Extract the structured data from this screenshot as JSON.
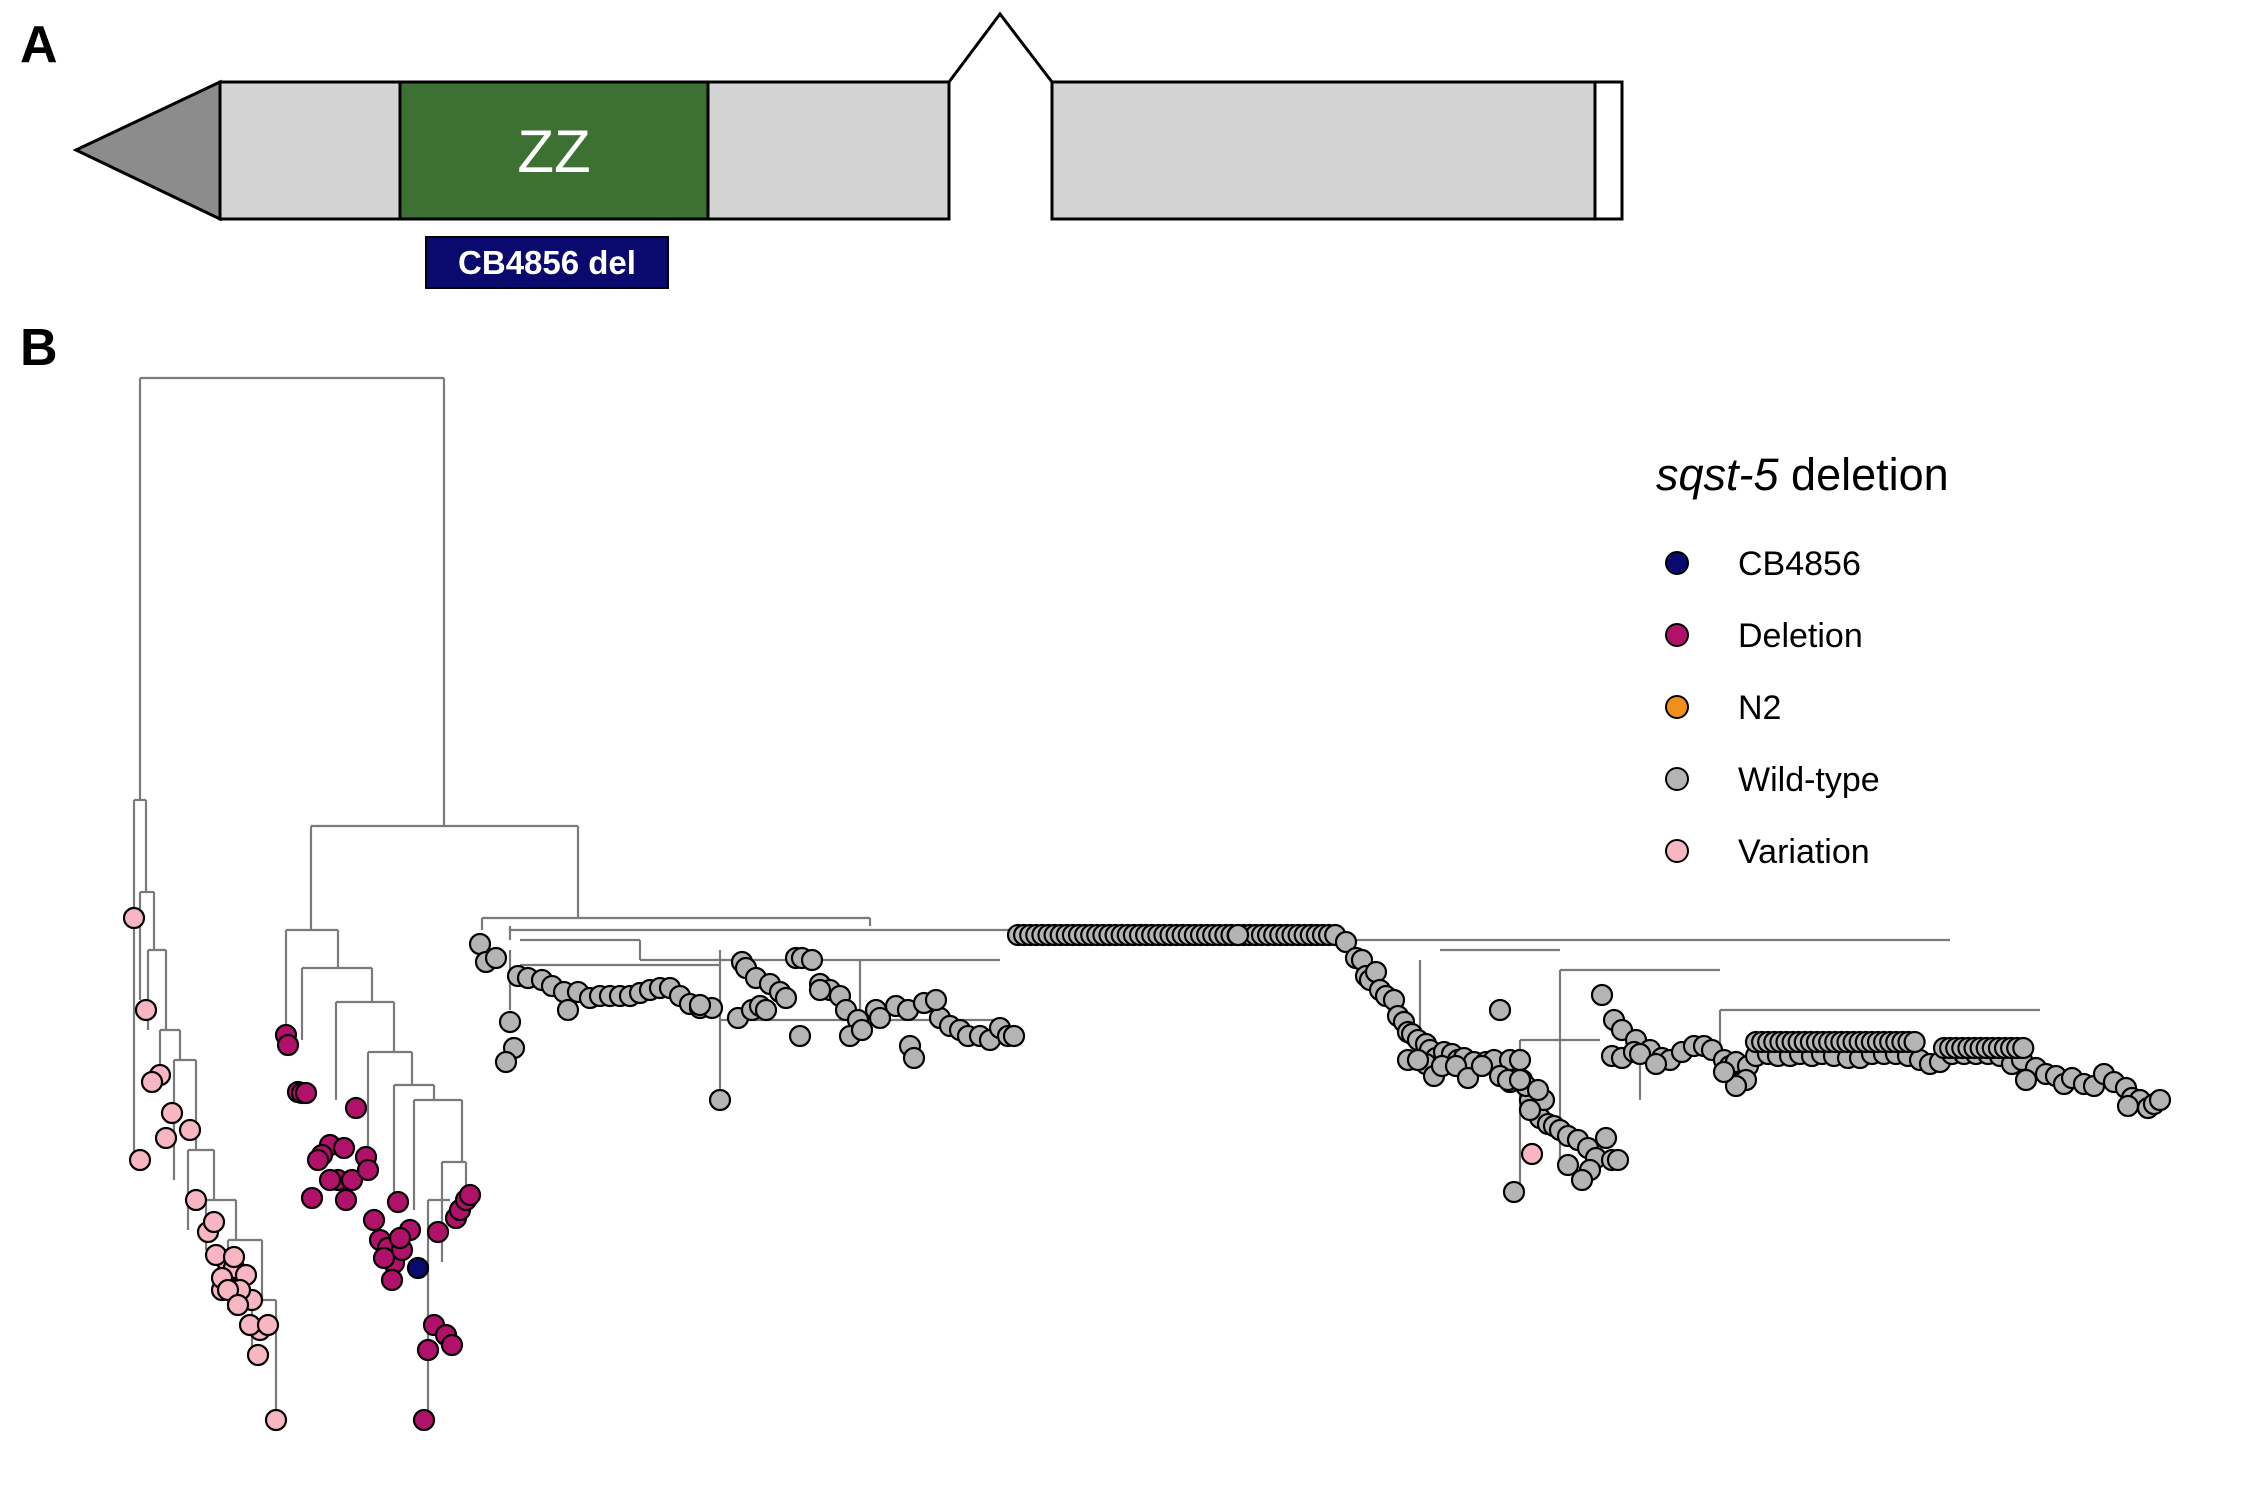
{
  "panel_a": {
    "label": "A",
    "domain_label": "ZZ",
    "deletion_label": "CB4856 del",
    "colors": {
      "utr": "#8c8c8c",
      "exon": "#d3d3d3",
      "zz_domain": "#3d7033",
      "deletion_box": "#0a0a6e"
    }
  },
  "panel_b": {
    "label": "B",
    "legend": {
      "title_italic": "sqst-5",
      "title_rest": " deletion",
      "items": [
        {
          "label": "CB4856",
          "color": "#0a0a6e"
        },
        {
          "label": "Deletion",
          "color": "#b0126a"
        },
        {
          "label": "N2",
          "color": "#f0901a"
        },
        {
          "label": "Wild-type",
          "color": "#b4b4b4"
        },
        {
          "label": "Variation",
          "color": "#f7b6c2"
        }
      ]
    }
  }
}
